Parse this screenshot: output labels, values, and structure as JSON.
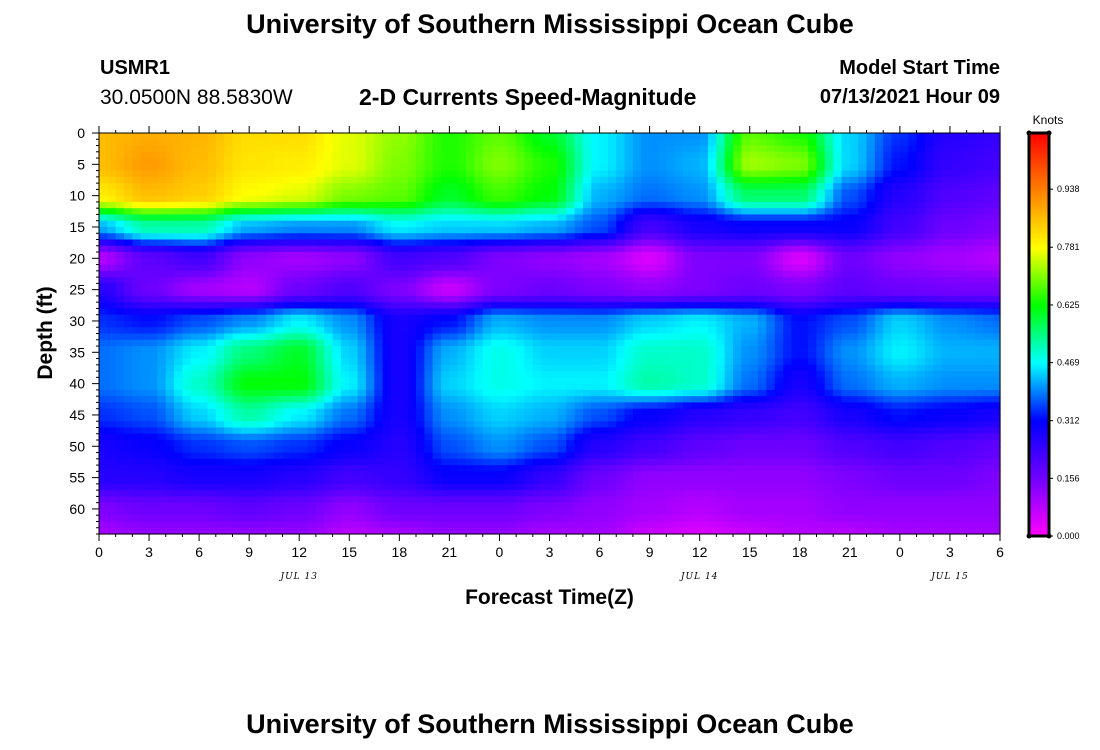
{
  "header": {
    "title": "University of Southern Mississippi Ocean Cube",
    "station_id": "USMR1",
    "coords": "30.0500N  88.5830W",
    "plot_title": "2-D Currents Speed-Magnitude",
    "start_label": "Model Start Time",
    "start_value": "07/13/2021 Hour 09"
  },
  "footer": {
    "title": "University of Southern Mississippi Ocean Cube"
  },
  "chart_data": {
    "type": "heatmap",
    "title": "2-D Currents Speed-Magnitude",
    "xlabel": "Forecast Time(Z)",
    "ylabel": "Depth (ft)",
    "colorbar_label": "Knots",
    "x_ticks": [
      "0",
      "3",
      "6",
      "9",
      "12",
      "15",
      "18",
      "21",
      "0",
      "3",
      "6",
      "9",
      "12",
      "15",
      "18",
      "21",
      "0",
      "3",
      "6"
    ],
    "date_labels": [
      {
        "label": "JUL 13",
        "at_hour": 12
      },
      {
        "label": "JUL 14",
        "at_hour": 36
      },
      {
        "label": "JUL 15",
        "at_hour": 51
      }
    ],
    "x_range_hours": [
      0,
      54
    ],
    "y_ticks": [
      0,
      5,
      10,
      15,
      20,
      25,
      30,
      35,
      40,
      45,
      50,
      55,
      60
    ],
    "y_range": [
      0,
      64
    ],
    "y_inverted": true,
    "colorbar_ticks": [
      "0.000",
      "0.156",
      "0.312",
      "0.469",
      "0.625",
      "0.781",
      "0.938"
    ],
    "colorbar_range": [
      0,
      1.09
    ],
    "colormap": [
      "#ff00ff",
      "#7000ff",
      "#0000ff",
      "#00ffff",
      "#00ff00",
      "#ffff00",
      "#ff8000",
      "#ff0000"
    ],
    "hours": [
      0,
      3,
      6,
      9,
      12,
      15,
      18,
      21,
      24,
      27,
      30,
      33,
      36,
      39,
      42,
      45,
      48,
      51,
      54
    ],
    "depths": [
      0,
      5,
      10,
      15,
      20,
      25,
      30,
      35,
      40,
      45,
      50,
      55,
      60,
      64
    ],
    "values": [
      [
        0.86,
        0.88,
        0.87,
        0.82,
        0.82,
        0.76,
        0.71,
        0.64,
        0.68,
        0.6,
        0.46,
        0.4,
        0.4,
        0.68,
        0.64,
        0.44,
        0.34,
        0.26,
        0.24
      ],
      [
        0.86,
        0.9,
        0.86,
        0.81,
        0.8,
        0.76,
        0.7,
        0.64,
        0.7,
        0.64,
        0.46,
        0.4,
        0.42,
        0.72,
        0.7,
        0.44,
        0.32,
        0.24,
        0.22
      ],
      [
        0.8,
        0.86,
        0.84,
        0.78,
        0.76,
        0.7,
        0.68,
        0.6,
        0.66,
        0.62,
        0.42,
        0.38,
        0.4,
        0.56,
        0.56,
        0.36,
        0.26,
        0.2,
        0.18
      ],
      [
        0.42,
        0.52,
        0.52,
        0.42,
        0.4,
        0.4,
        0.46,
        0.44,
        0.44,
        0.42,
        0.36,
        0.22,
        0.28,
        0.3,
        0.3,
        0.3,
        0.22,
        0.16,
        0.14
      ],
      [
        0.08,
        0.18,
        0.22,
        0.12,
        0.1,
        0.12,
        0.22,
        0.2,
        0.14,
        0.12,
        0.1,
        0.04,
        0.14,
        0.14,
        0.04,
        0.16,
        0.12,
        0.1,
        0.08
      ],
      [
        0.26,
        0.16,
        0.1,
        0.08,
        0.16,
        0.2,
        0.14,
        0.06,
        0.14,
        0.16,
        0.14,
        0.12,
        0.14,
        0.16,
        0.14,
        0.18,
        0.16,
        0.15,
        0.15
      ],
      [
        0.34,
        0.32,
        0.36,
        0.4,
        0.46,
        0.4,
        0.28,
        0.32,
        0.42,
        0.4,
        0.4,
        0.44,
        0.46,
        0.42,
        0.32,
        0.36,
        0.44,
        0.4,
        0.38
      ],
      [
        0.38,
        0.4,
        0.46,
        0.55,
        0.6,
        0.44,
        0.28,
        0.42,
        0.48,
        0.44,
        0.44,
        0.5,
        0.5,
        0.4,
        0.32,
        0.4,
        0.46,
        0.42,
        0.42
      ],
      [
        0.38,
        0.4,
        0.5,
        0.62,
        0.62,
        0.46,
        0.28,
        0.44,
        0.48,
        0.46,
        0.46,
        0.52,
        0.5,
        0.38,
        0.28,
        0.38,
        0.42,
        0.4,
        0.4
      ],
      [
        0.34,
        0.36,
        0.44,
        0.52,
        0.46,
        0.38,
        0.28,
        0.4,
        0.44,
        0.42,
        0.36,
        0.3,
        0.26,
        0.24,
        0.22,
        0.28,
        0.32,
        0.3,
        0.28
      ],
      [
        0.28,
        0.3,
        0.34,
        0.36,
        0.34,
        0.3,
        0.26,
        0.36,
        0.4,
        0.36,
        0.26,
        0.22,
        0.18,
        0.16,
        0.16,
        0.2,
        0.22,
        0.2,
        0.18
      ],
      [
        0.26,
        0.26,
        0.28,
        0.28,
        0.26,
        0.22,
        0.24,
        0.3,
        0.3,
        0.24,
        0.16,
        0.12,
        0.12,
        0.12,
        0.12,
        0.14,
        0.16,
        0.16,
        0.14
      ],
      [
        0.14,
        0.16,
        0.16,
        0.18,
        0.16,
        0.12,
        0.16,
        0.16,
        0.16,
        0.14,
        0.12,
        0.1,
        0.08,
        0.1,
        0.1,
        0.12,
        0.12,
        0.12,
        0.12
      ],
      [
        0.1,
        0.12,
        0.12,
        0.12,
        0.12,
        0.08,
        0.1,
        0.12,
        0.12,
        0.1,
        0.1,
        0.06,
        0.04,
        0.06,
        0.08,
        0.08,
        0.1,
        0.1,
        0.1
      ]
    ]
  }
}
